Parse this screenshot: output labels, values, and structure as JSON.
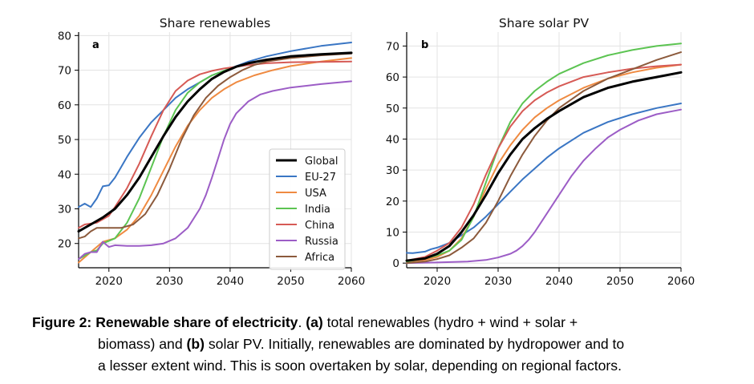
{
  "chart_data": [
    {
      "type": "line",
      "panel": "a",
      "title": "Share renewables",
      "xlabel": "",
      "ylabel": "",
      "xlim": [
        2015,
        2060
      ],
      "ylim": [
        13,
        81
      ],
      "xticks": [
        2020,
        2030,
        2040,
        2050,
        2060
      ],
      "yticks": [
        20,
        30,
        40,
        50,
        60,
        70,
        80
      ],
      "grid": true,
      "legend": "lower-right",
      "series": [
        {
          "name": "Global",
          "color": "#000000",
          "width": 3,
          "x": [
            2015,
            2017,
            2019,
            2021,
            2023,
            2025,
            2027,
            2029,
            2031,
            2033,
            2035,
            2037,
            2039,
            2041,
            2043,
            2046,
            2050,
            2055,
            2060
          ],
          "y": [
            23.5,
            25.5,
            27.5,
            30,
            34,
            39,
            45,
            51,
            56.5,
            61,
            64.5,
            67.5,
            69.5,
            71,
            72,
            73,
            74,
            74.6,
            75
          ]
        },
        {
          "name": "EU-27",
          "color": "#3a76c4",
          "width": 2,
          "x": [
            2015,
            2016,
            2017,
            2018,
            2019,
            2020,
            2021,
            2022,
            2023,
            2025,
            2027,
            2029,
            2031,
            2033,
            2035,
            2037,
            2040,
            2043,
            2046,
            2050,
            2055,
            2060
          ],
          "y": [
            30.5,
            31.5,
            30.5,
            33,
            36.5,
            36.8,
            39,
            42,
            45,
            50.5,
            55,
            58.5,
            62,
            64.5,
            66.5,
            68.5,
            70.5,
            72.5,
            74,
            75.5,
            77,
            78
          ]
        },
        {
          "name": "USA",
          "color": "#ef8a41",
          "width": 2,
          "x": [
            2015,
            2017,
            2019,
            2021,
            2023,
            2025,
            2027,
            2029,
            2031,
            2033,
            2035,
            2037,
            2039,
            2041,
            2044,
            2047,
            2050,
            2055,
            2060
          ],
          "y": [
            14.5,
            17.5,
            20.5,
            21.5,
            24,
            28,
            34,
            41,
            48,
            54,
            58.5,
            62,
            64.5,
            66.5,
            68.5,
            70,
            71.2,
            72.5,
            73.5
          ]
        },
        {
          "name": "India",
          "color": "#5cc452",
          "width": 2,
          "x": [
            2015,
            2017,
            2018,
            2019,
            2021,
            2023,
            2025,
            2027,
            2029,
            2031,
            2033,
            2035,
            2037,
            2040,
            2043,
            2046,
            2050,
            2055,
            2060
          ],
          "y": [
            15.5,
            17.5,
            18,
            20,
            21.5,
            26,
            33,
            42,
            51,
            58.5,
            63.5,
            66.5,
            68.5,
            70.5,
            72,
            73,
            74,
            74.5,
            75
          ]
        },
        {
          "name": "China",
          "color": "#d65a55",
          "width": 2,
          "x": [
            2015,
            2016,
            2018,
            2020,
            2021,
            2023,
            2025,
            2027,
            2029,
            2031,
            2033,
            2035,
            2037,
            2039,
            2041,
            2043,
            2046,
            2050,
            2055,
            2060
          ],
          "y": [
            24.5,
            25.5,
            26,
            28,
            30.5,
            36,
            43,
            51,
            58.5,
            64,
            67,
            68.8,
            69.8,
            70.5,
            71,
            71.5,
            72,
            72.3,
            72.4,
            72.5
          ]
        },
        {
          "name": "Russia",
          "color": "#9c5dc6",
          "width": 2,
          "x": [
            2015,
            2016,
            2017,
            2018,
            2019,
            2020,
            2021,
            2023,
            2025,
            2027,
            2029,
            2031,
            2033,
            2035,
            2036,
            2037,
            2038,
            2039,
            2040,
            2041,
            2043,
            2045,
            2047,
            2050,
            2055,
            2060
          ],
          "y": [
            15.5,
            17,
            17.5,
            17.5,
            20.5,
            19,
            19.5,
            19.3,
            19.3,
            19.5,
            20,
            21.5,
            24.5,
            30,
            34,
            39,
            44.5,
            50,
            54.5,
            57.5,
            61,
            63,
            64,
            65,
            66,
            66.8
          ]
        },
        {
          "name": "Africa",
          "color": "#8c5a3c",
          "width": 2,
          "x": [
            2015,
            2016,
            2017,
            2018,
            2020,
            2022,
            2024,
            2026,
            2028,
            2030,
            2032,
            2034,
            2036,
            2038,
            2040,
            2042,
            2044,
            2046,
            2050,
            2055,
            2060
          ],
          "y": [
            21.5,
            22,
            23.5,
            24.5,
            24.5,
            24.5,
            25.5,
            28.5,
            34,
            41.5,
            50,
            57,
            62,
            65.5,
            68,
            70,
            71.5,
            72.5,
            73.5,
            74.3,
            74.8
          ]
        }
      ]
    },
    {
      "type": "line",
      "panel": "b",
      "title": "Share solar PV",
      "xlabel": "",
      "ylabel": "",
      "xlim": [
        2015,
        2060
      ],
      "ylim": [
        -1.5,
        74.5
      ],
      "xticks": [
        2020,
        2030,
        2040,
        2050,
        2060
      ],
      "yticks": [
        0,
        10,
        20,
        30,
        40,
        50,
        60,
        70
      ],
      "grid": true,
      "series": [
        {
          "name": "Global",
          "color": "#000000",
          "width": 3,
          "x": [
            2015,
            2018,
            2020,
            2022,
            2024,
            2026,
            2028,
            2030,
            2032,
            2034,
            2036,
            2038,
            2040,
            2044,
            2048,
            2052,
            2056,
            2060
          ],
          "y": [
            0.8,
            1.5,
            3,
            5.5,
            10,
            15.5,
            22,
            29,
            35,
            40,
            43.5,
            46.5,
            49,
            53.5,
            56.5,
            58.5,
            60,
            61.5
          ]
        },
        {
          "name": "EU-27",
          "color": "#3a76c4",
          "width": 2,
          "x": [
            2015,
            2016,
            2018,
            2019,
            2020,
            2022,
            2024,
            2026,
            2028,
            2030,
            2032,
            2034,
            2036,
            2038,
            2040,
            2044,
            2048,
            2052,
            2056,
            2060
          ],
          "y": [
            3.3,
            3.2,
            3.7,
            4.5,
            5,
            6.5,
            9,
            11.5,
            15,
            19,
            23,
            27,
            30.5,
            34,
            37,
            42,
            45.5,
            48,
            50,
            51.5
          ]
        },
        {
          "name": "USA",
          "color": "#ef8a41",
          "width": 2,
          "x": [
            2015,
            2018,
            2020,
            2022,
            2024,
            2026,
            2028,
            2030,
            2032,
            2034,
            2036,
            2038,
            2040,
            2044,
            2048,
            2052,
            2056,
            2060
          ],
          "y": [
            0.5,
            1,
            2,
            4,
            8,
            15,
            24,
            32,
            38,
            43,
            47,
            50,
            52.5,
            56.5,
            59.5,
            61.5,
            63,
            64
          ]
        },
        {
          "name": "India",
          "color": "#5cc452",
          "width": 2,
          "x": [
            2015,
            2018,
            2020,
            2022,
            2024,
            2026,
            2028,
            2030,
            2032,
            2034,
            2036,
            2038,
            2040,
            2044,
            2048,
            2052,
            2056,
            2060
          ],
          "y": [
            0.5,
            1.5,
            2.5,
            4,
            7.5,
            15,
            26,
            37,
            45.5,
            51.5,
            55.5,
            58.5,
            61,
            64.5,
            67,
            68.7,
            70,
            70.8
          ]
        },
        {
          "name": "China",
          "color": "#d65a55",
          "width": 2,
          "x": [
            2015,
            2018,
            2020,
            2022,
            2024,
            2026,
            2028,
            2030,
            2032,
            2034,
            2036,
            2038,
            2040,
            2044,
            2048,
            2052,
            2056,
            2060
          ],
          "y": [
            0.8,
            2,
            4,
            6.5,
            11.5,
            19,
            28.5,
            37,
            44,
            49,
            52.5,
            55,
            57,
            60,
            61.5,
            62.7,
            63.5,
            64
          ]
        },
        {
          "name": "Russia",
          "color": "#9c5dc6",
          "width": 2,
          "x": [
            2015,
            2020,
            2025,
            2028,
            2030,
            2032,
            2033,
            2034,
            2035,
            2036,
            2037,
            2038,
            2039,
            2040,
            2042,
            2044,
            2046,
            2048,
            2050,
            2053,
            2056,
            2060
          ],
          "y": [
            0,
            0.2,
            0.5,
            1,
            1.8,
            3,
            4,
            5.5,
            7.5,
            10,
            13,
            16,
            19,
            22,
            28,
            33,
            37,
            40.5,
            43,
            46,
            48,
            49.5
          ]
        },
        {
          "name": "Africa",
          "color": "#8c5a3c",
          "width": 2,
          "x": [
            2015,
            2018,
            2020,
            2022,
            2024,
            2026,
            2028,
            2030,
            2032,
            2034,
            2036,
            2038,
            2040,
            2044,
            2048,
            2052,
            2056,
            2060
          ],
          "y": [
            0,
            0.5,
            1.3,
            2.5,
            5,
            8,
            13,
            20,
            28,
            35,
            41,
            46,
            50,
            55.5,
            59.5,
            62.5,
            65.5,
            68
          ]
        }
      ]
    }
  ],
  "panels": {
    "a": {
      "title": "Share renewables",
      "label": "a"
    },
    "b": {
      "title": "Share solar PV",
      "label": "b"
    }
  },
  "caption": {
    "figure_label": "Figure 2:",
    "title": "Renewable share of electricity",
    "part_a_label": "(a)",
    "part_a_text": "total renewables (hydro + wind + solar +",
    "line2_start": "biomass) and",
    "part_b_label": "(b)",
    "part_b_text": "solar PV. Initially, renewables are dominated by hydropower and to",
    "line3": "a lesser extent wind. This is soon overtaken by solar, depending on regional factors."
  }
}
